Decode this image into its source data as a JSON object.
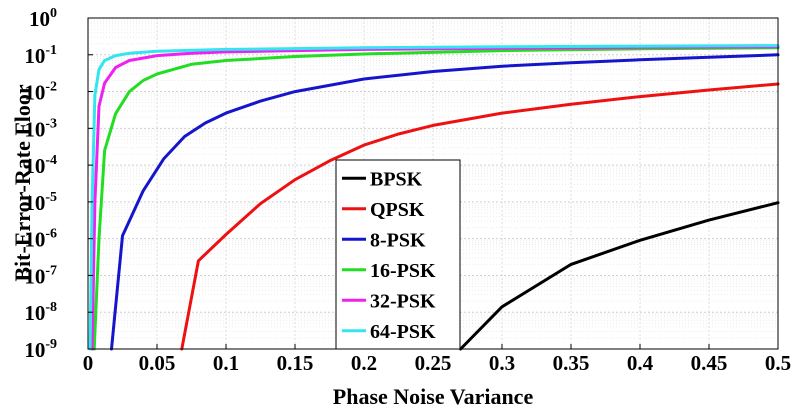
{
  "chart_data": {
    "type": "line",
    "title": "",
    "xlabel": "Phase Noise Variance",
    "ylabel": "Bit-Error-Rate Floor",
    "xlim": [
      0,
      0.5
    ],
    "ylim": [
      1e-09,
      1
    ],
    "yscale": "log",
    "grid": true,
    "legend_position": "lower-center",
    "x_ticks": [
      "0",
      "0.05",
      "0.1",
      "0.15",
      "0.2",
      "0.25",
      "0.3",
      "0.35",
      "0.4",
      "0.45",
      "0.5"
    ],
    "y_ticks": [
      {
        "base": "10",
        "exp": "0"
      },
      {
        "base": "10",
        "exp": "-1"
      },
      {
        "base": "10",
        "exp": "-2"
      },
      {
        "base": "10",
        "exp": "-3"
      },
      {
        "base": "10",
        "exp": "-4"
      },
      {
        "base": "10",
        "exp": "-5"
      },
      {
        "base": "10",
        "exp": "-6"
      },
      {
        "base": "10",
        "exp": "-7"
      },
      {
        "base": "10",
        "exp": "-8"
      },
      {
        "base": "10",
        "exp": "-9"
      }
    ],
    "series": [
      {
        "name": "BPSK",
        "color": "#000000",
        "x": [
          0.27,
          0.3,
          0.35,
          0.4,
          0.45,
          0.5
        ],
        "y": [
          1e-09,
          1.4e-08,
          2e-07,
          9e-07,
          3.2e-06,
          9.5e-06
        ]
      },
      {
        "name": "QPSK",
        "color": "#ee1111",
        "x": [
          0.068,
          0.08,
          0.1,
          0.125,
          0.15,
          0.175,
          0.2,
          0.225,
          0.25,
          0.3,
          0.35,
          0.4,
          0.45,
          0.5
        ],
        "y": [
          1e-09,
          2.5e-07,
          1.3e-06,
          9e-06,
          4e-05,
          0.00013,
          0.00035,
          0.0007,
          0.0012,
          0.0026,
          0.0045,
          0.0073,
          0.011,
          0.016
        ]
      },
      {
        "name": "8-PSK",
        "color": "#1515cc",
        "x": [
          0.017,
          0.025,
          0.04,
          0.055,
          0.07,
          0.085,
          0.1,
          0.125,
          0.15,
          0.2,
          0.25,
          0.3,
          0.35,
          0.4,
          0.45,
          0.5
        ],
        "y": [
          1e-09,
          1.2e-06,
          2e-05,
          0.00015,
          0.0006,
          0.0014,
          0.0026,
          0.0055,
          0.01,
          0.022,
          0.035,
          0.049,
          0.061,
          0.073,
          0.086,
          0.1
        ]
      },
      {
        "name": "16-PSK",
        "color": "#22dd22",
        "x": [
          0.0045,
          0.008,
          0.012,
          0.02,
          0.03,
          0.04,
          0.05,
          0.075,
          0.1,
          0.15,
          0.2,
          0.3,
          0.4,
          0.5
        ],
        "y": [
          1e-09,
          1e-06,
          0.00025,
          0.0025,
          0.01,
          0.02,
          0.03,
          0.055,
          0.07,
          0.09,
          0.105,
          0.13,
          0.145,
          0.155
        ]
      },
      {
        "name": "32-PSK",
        "color": "#ee22ee",
        "x": [
          0.003,
          0.005,
          0.008,
          0.012,
          0.02,
          0.03,
          0.05,
          0.075,
          0.1,
          0.2,
          0.3,
          0.4,
          0.5
        ],
        "y": [
          1e-09,
          1e-05,
          0.004,
          0.017,
          0.045,
          0.07,
          0.095,
          0.11,
          0.12,
          0.14,
          0.15,
          0.16,
          0.165
        ]
      },
      {
        "name": "64-PSK",
        "color": "#33e5ee",
        "x": [
          0.0015,
          0.003,
          0.005,
          0.008,
          0.012,
          0.02,
          0.03,
          0.05,
          0.1,
          0.2,
          0.3,
          0.4,
          0.5
        ],
        "y": [
          1e-09,
          1e-05,
          0.008,
          0.04,
          0.07,
          0.095,
          0.11,
          0.125,
          0.14,
          0.155,
          0.165,
          0.172,
          0.178
        ]
      }
    ]
  }
}
